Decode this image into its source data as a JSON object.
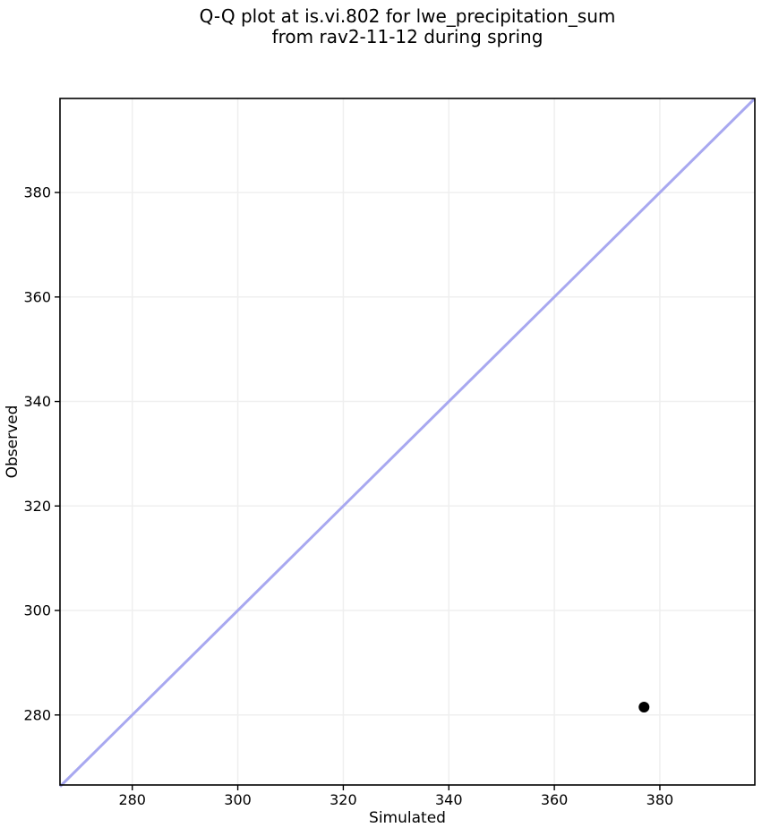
{
  "chart_data": {
    "type": "scatter",
    "title": "Q-Q plot at is.vi.802 for lwe_precipitation_sum\nfrom rav2-11-12 during spring",
    "xlabel": "Simulated",
    "ylabel": "Observed",
    "xlim": [
      266.3,
      398.0
    ],
    "ylim": [
      266.6,
      398.0
    ],
    "xticks": [
      280,
      300,
      320,
      340,
      360,
      380
    ],
    "yticks": [
      280,
      300,
      320,
      340,
      360,
      380
    ],
    "grid": true,
    "legend": "none",
    "identity_line": {
      "description": "y = x reference line drawn corner to corner",
      "from": 266.3,
      "to": 398.0,
      "color": "#a8a8f0",
      "width": 3
    },
    "points": [
      {
        "x": 377.0,
        "y": 281.5
      }
    ],
    "point_color": "#000000",
    "point_radius": 6,
    "grid_color": "#efefef",
    "spine_color": "#000000",
    "background": "#ffffff"
  }
}
